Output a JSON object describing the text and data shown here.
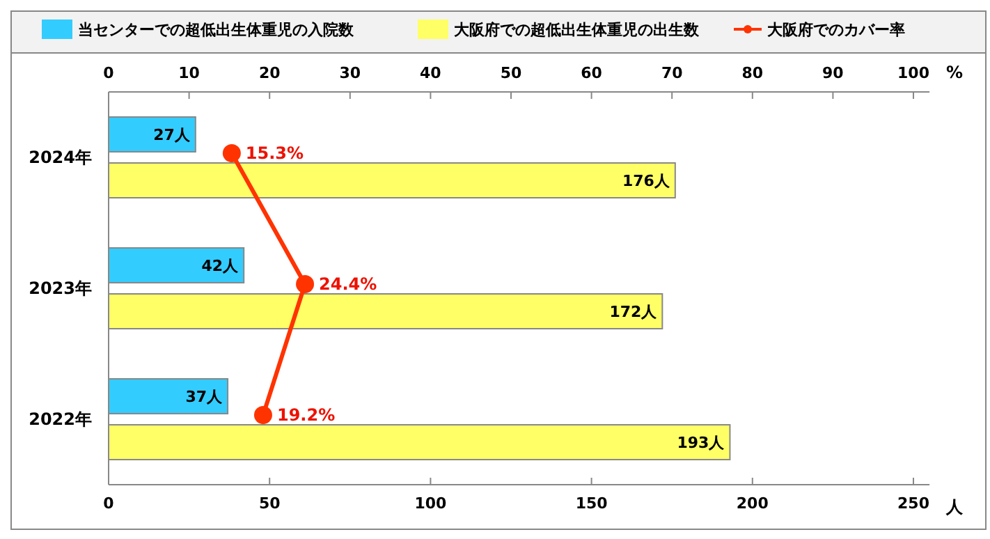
{
  "chart_data": {
    "type": "bar",
    "orientation": "horizontal",
    "categories": [
      "2024年",
      "2023年",
      "2022年"
    ],
    "series": [
      {
        "name": "当センターでの超低出生体重児の入院数",
        "color": "#33ccff",
        "values": [
          27,
          42,
          37
        ],
        "value_labels": [
          "27人",
          "42人",
          "37人"
        ]
      },
      {
        "name": "大阪府での超低出生体重児の出生数",
        "color": "#ffff66",
        "values": [
          176,
          172,
          193
        ],
        "value_labels": [
          "176人",
          "172人",
          "193人"
        ]
      },
      {
        "name": "大阪府でのカバー率",
        "type": "line",
        "axis": "x2",
        "color": "#ff3300",
        "marker": "circle",
        "values": [
          15.3,
          24.4,
          19.2
        ],
        "value_labels": [
          "15.3%",
          "24.4%",
          "19.2%"
        ]
      }
    ],
    "xlim": [
      0,
      255
    ],
    "xticks": [
      0,
      50,
      100,
      150,
      200,
      250
    ],
    "xlabel": "人",
    "x2lim": [
      0,
      102
    ],
    "x2ticks": [
      0,
      10,
      20,
      30,
      40,
      50,
      60,
      70,
      80,
      90,
      100
    ],
    "x2label": "%",
    "legend": "top",
    "grid": false
  }
}
